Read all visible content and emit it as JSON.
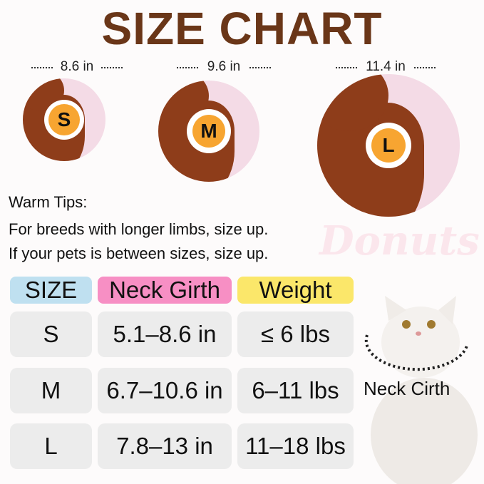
{
  "title": "SIZE CHART",
  "background_text": "Donuts",
  "sizes": [
    {
      "letter": "S",
      "diameter": "8.6 in"
    },
    {
      "letter": "M",
      "diameter": "9.6 in"
    },
    {
      "letter": "L",
      "diameter": "11.4 in"
    }
  ],
  "tips": {
    "heading": "Warm Tips:",
    "lines": [
      "For breeds with longer limbs, size up.",
      "If your pets is between sizes, size up."
    ]
  },
  "table": {
    "headers": [
      "SIZE",
      "Neck Girth",
      "Weight"
    ],
    "header_colors": [
      "#bfe0f0",
      "#f78fc4",
      "#fbe76a"
    ],
    "rows": [
      [
        "S",
        "5.1–8.6 in",
        "≤ 6 lbs"
      ],
      [
        "M",
        "6.7–10.6 in",
        "6–11 lbs"
      ],
      [
        "L",
        "7.8–13 in",
        "11–18 lbs"
      ]
    ]
  },
  "cat_label": "Neck Cirth",
  "colors": {
    "title": "#6a3618",
    "chocolate": "#8e3d1a",
    "pink": "#f4dbe6",
    "badge": "#f7a531"
  }
}
